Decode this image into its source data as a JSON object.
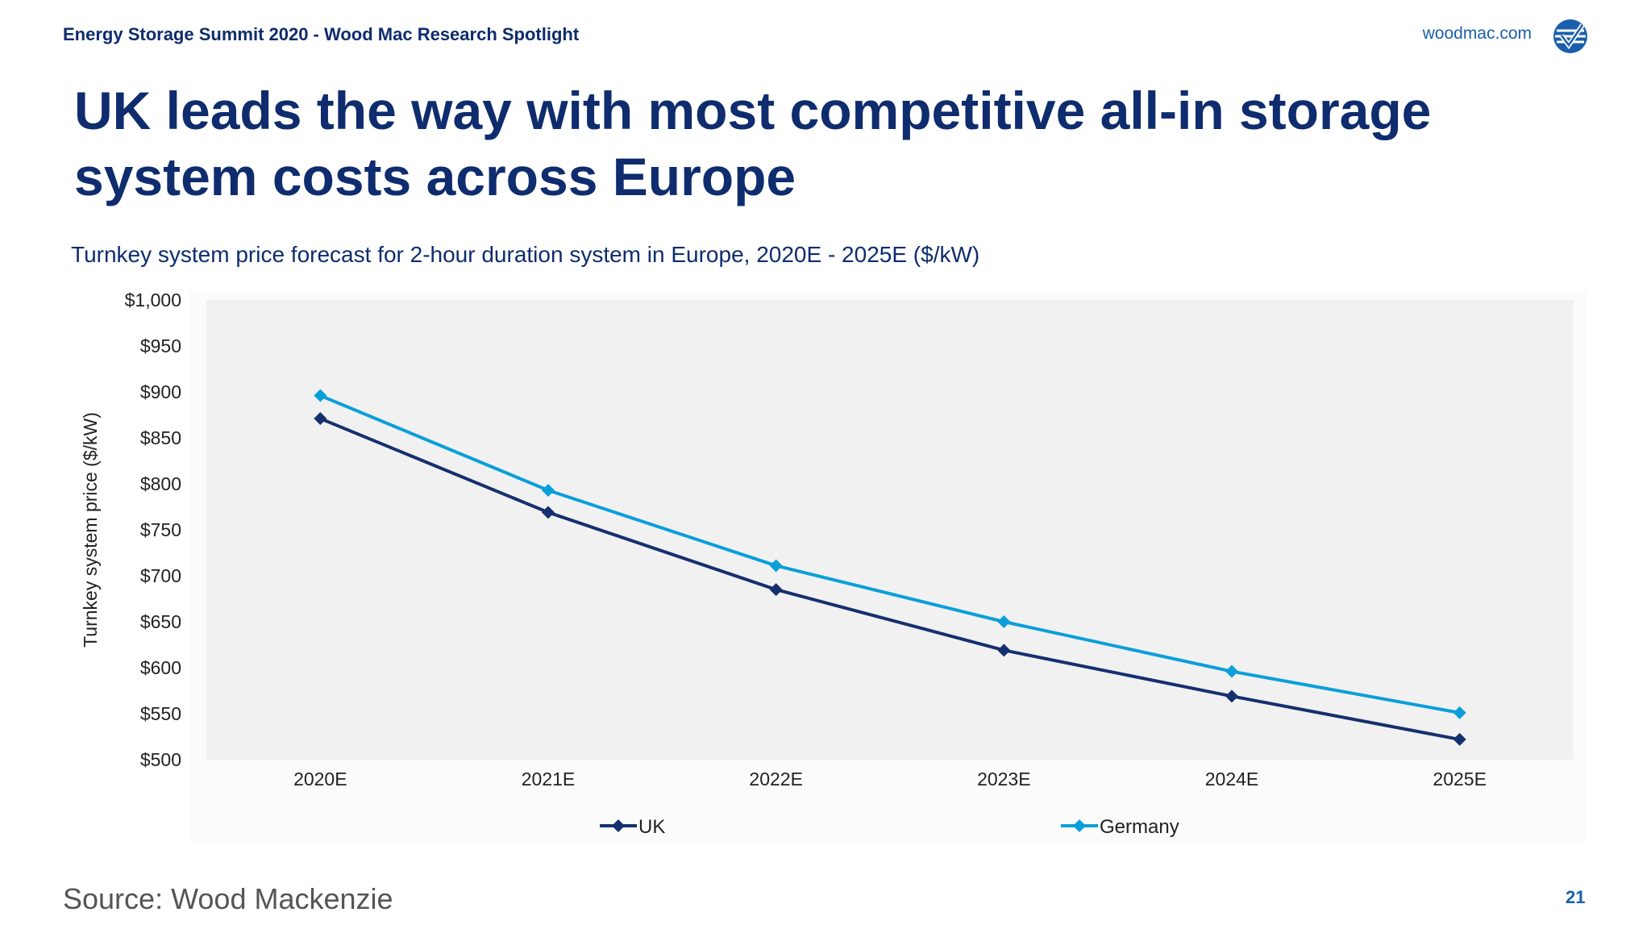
{
  "header": {
    "event_title": "Energy Storage Summit 2020 - Wood Mac Research Spotlight",
    "brand_url": "woodmac.com"
  },
  "slide": {
    "title": "UK leads the way with most competitive all-in storage system costs across Europe",
    "source": "Source: Wood Mackenzie",
    "page_number": "21"
  },
  "colors": {
    "navy": "#0e2c6e",
    "uk_series": "#15306e",
    "germany_series": "#0b9fd9",
    "plot_background": "#f1f1f2"
  },
  "chart_data": {
    "type": "line",
    "title": "Turnkey system price forecast for 2-hour duration system in Europe, 2020E - 2025E ($/kW)",
    "ylabel": "Turnkey system price ($/kW)",
    "xlabel": "",
    "categories": [
      "2020E",
      "2021E",
      "2022E",
      "2023E",
      "2024E",
      "2025E"
    ],
    "ylim": [
      500,
      1000
    ],
    "yticks": [
      500,
      550,
      600,
      650,
      700,
      750,
      800,
      850,
      900,
      950,
      1000
    ],
    "ytick_labels": [
      "$500",
      "$550",
      "$600",
      "$650",
      "$700",
      "$750",
      "$800",
      "$850",
      "$900",
      "$950",
      "$1,000"
    ],
    "grid": false,
    "legend_position": "bottom",
    "series": [
      {
        "name": "UK",
        "values": [
          871,
          769,
          685,
          619,
          569,
          522
        ],
        "color": "#15306e",
        "marker": "diamond"
      },
      {
        "name": "Germany",
        "values": [
          896,
          793,
          711,
          650,
          596,
          551
        ],
        "color": "#0b9fd9",
        "marker": "diamond"
      }
    ]
  }
}
